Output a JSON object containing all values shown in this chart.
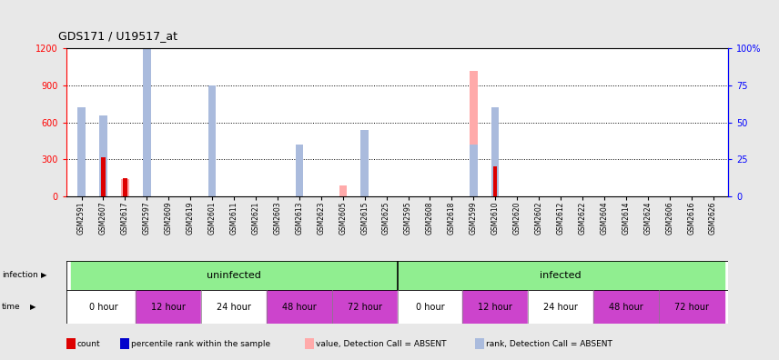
{
  "title": "GDS171 / U19517_at",
  "samples": [
    "GSM2591",
    "GSM2607",
    "GSM2617",
    "GSM2597",
    "GSM2609",
    "GSM2619",
    "GSM2601",
    "GSM2611",
    "GSM2621",
    "GSM2603",
    "GSM2613",
    "GSM2623",
    "GSM2605",
    "GSM2615",
    "GSM2625",
    "GSM2595",
    "GSM2608",
    "GSM2618",
    "GSM2599",
    "GSM2610",
    "GSM2620",
    "GSM2602",
    "GSM2612",
    "GSM2622",
    "GSM2604",
    "GSM2614",
    "GSM2624",
    "GSM2606",
    "GSM2616",
    "GSM2626"
  ],
  "count_values": [
    0,
    315,
    150,
    0,
    0,
    0,
    0,
    0,
    0,
    0,
    0,
    0,
    0,
    0,
    0,
    0,
    0,
    0,
    0,
    240,
    0,
    0,
    0,
    0,
    0,
    0,
    0,
    0,
    0,
    0
  ],
  "rank_values": [
    0,
    0,
    0,
    0,
    0,
    0,
    0,
    0,
    0,
    0,
    0,
    0,
    0,
    0,
    0,
    0,
    0,
    0,
    0,
    0,
    0,
    0,
    0,
    0,
    0,
    0,
    0,
    0,
    0,
    0
  ],
  "absent_count": [
    0,
    310,
    140,
    0,
    0,
    0,
    220,
    0,
    0,
    0,
    0,
    0,
    90,
    0,
    0,
    0,
    0,
    0,
    1020,
    230,
    0,
    0,
    0,
    0,
    0,
    0,
    0,
    0,
    0,
    0
  ],
  "absent_rank_pct": [
    60,
    55,
    0,
    100,
    0,
    0,
    75,
    0,
    0,
    0,
    35,
    0,
    0,
    45,
    0,
    0,
    0,
    0,
    35,
    60,
    0,
    0,
    0,
    0,
    0,
    0,
    0,
    0,
    0,
    0
  ],
  "ylim_left": [
    0,
    1200
  ],
  "ylim_right": [
    0,
    100
  ],
  "yticks_left": [
    0,
    300,
    600,
    900,
    1200
  ],
  "yticks_right": [
    0,
    25,
    50,
    75,
    100
  ],
  "ytick_right_labels": [
    "0",
    "25",
    "50",
    "75",
    "100%"
  ],
  "infection_groups": [
    {
      "label": "uninfected",
      "start": 0,
      "end": 15,
      "color": "#90EE90"
    },
    {
      "label": "infected",
      "start": 15,
      "end": 30,
      "color": "#90EE90"
    }
  ],
  "time_groups": [
    {
      "label": "0 hour",
      "start": 0,
      "end": 3,
      "color": "#ffffff"
    },
    {
      "label": "12 hour",
      "start": 3,
      "end": 6,
      "color": "#cc44cc"
    },
    {
      "label": "24 hour",
      "start": 6,
      "end": 9,
      "color": "#ffffff"
    },
    {
      "label": "48 hour",
      "start": 9,
      "end": 12,
      "color": "#cc44cc"
    },
    {
      "label": "72 hour",
      "start": 12,
      "end": 15,
      "color": "#cc44cc"
    },
    {
      "label": "0 hour",
      "start": 15,
      "end": 18,
      "color": "#ffffff"
    },
    {
      "label": "12 hour",
      "start": 18,
      "end": 21,
      "color": "#cc44cc"
    },
    {
      "label": "24 hour",
      "start": 21,
      "end": 24,
      "color": "#ffffff"
    },
    {
      "label": "48 hour",
      "start": 24,
      "end": 27,
      "color": "#cc44cc"
    },
    {
      "label": "72 hour",
      "start": 27,
      "end": 30,
      "color": "#cc44cc"
    }
  ],
  "count_color": "#dd0000",
  "rank_color": "#0000cc",
  "absent_count_color": "#ffaaaa",
  "absent_rank_color": "#aabbdd",
  "bg_color": "#e8e8e8",
  "plot_bg": "#ffffff",
  "legend_items": [
    {
      "label": "count",
      "color": "#dd0000"
    },
    {
      "label": "percentile rank within the sample",
      "color": "#0000cc"
    },
    {
      "label": "value, Detection Call = ABSENT",
      "color": "#ffaaaa"
    },
    {
      "label": "rank, Detection Call = ABSENT",
      "color": "#aabbdd"
    }
  ]
}
